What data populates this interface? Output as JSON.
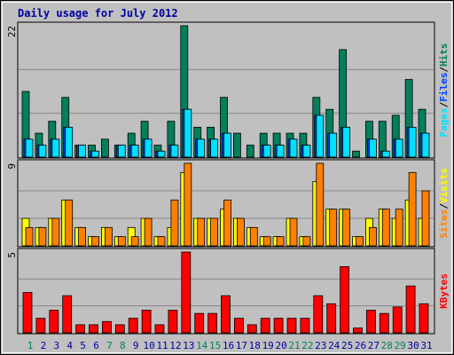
{
  "title": "Daily usage for July 2012",
  "chart_data": [
    {
      "type": "bar",
      "ylim": [
        0,
        22
      ],
      "yticks": [
        22
      ],
      "legend_separator": "/",
      "series": [
        {
          "name": "Hits",
          "color": "#00805c",
          "values": [
            11,
            4,
            6,
            10,
            2,
            2,
            3,
            2,
            4,
            6,
            2,
            6,
            22,
            5,
            5,
            10,
            4,
            2,
            4,
            4,
            4,
            4,
            10,
            8,
            18,
            1,
            6,
            6,
            7,
            13,
            8
          ]
        },
        {
          "name": "Files",
          "color": "#0040ff",
          "values": [
            3,
            2,
            3,
            5,
            2,
            1,
            0,
            2,
            2,
            3,
            1,
            2,
            8,
            3,
            3,
            4,
            0,
            0,
            2,
            2,
            3,
            2,
            7,
            4,
            5,
            0,
            3,
            1,
            3,
            5,
            4
          ]
        },
        {
          "name": "Pages",
          "color": "#00e0ff",
          "values": [
            3,
            2,
            3,
            5,
            2,
            1,
            0,
            2,
            2,
            3,
            1,
            2,
            8,
            3,
            3,
            4,
            0,
            0,
            2,
            2,
            3,
            2,
            7,
            4,
            5,
            0,
            3,
            1,
            3,
            5,
            4
          ]
        }
      ]
    },
    {
      "type": "bar",
      "ylim": [
        0,
        9
      ],
      "yticks": [
        9
      ],
      "legend_separator": "/",
      "series": [
        {
          "name": "Visits",
          "color": "#ffff00",
          "values": [
            3,
            2,
            3,
            5,
            2,
            1,
            2,
            1,
            2,
            3,
            1,
            2,
            8,
            3,
            3,
            4,
            3,
            2,
            1,
            1,
            3,
            1,
            7,
            4,
            4,
            1,
            3,
            4,
            3,
            5,
            3
          ]
        },
        {
          "name": "Sites",
          "color": "#ff8000",
          "values": [
            2,
            2,
            3,
            5,
            2,
            1,
            2,
            1,
            1,
            3,
            1,
            5,
            9,
            3,
            3,
            5,
            3,
            2,
            1,
            1,
            3,
            1,
            9,
            4,
            4,
            1,
            2,
            4,
            4,
            8,
            6
          ]
        }
      ]
    },
    {
      "type": "bar",
      "ylim": [
        0,
        5
      ],
      "yticks": [
        5
      ],
      "categories": [
        "1",
        "2",
        "3",
        "4",
        "5",
        "6",
        "7",
        "8",
        "9",
        "10",
        "11",
        "12",
        "13",
        "14",
        "15",
        "16",
        "17",
        "18",
        "19",
        "20",
        "21",
        "22",
        "23",
        "24",
        "25",
        "26",
        "27",
        "28",
        "29",
        "30",
        "31"
      ],
      "category_colors": [
        "#00805c",
        "#0000a0",
        "#0000a0",
        "#0000a0",
        "#0000a0",
        "#0000a0",
        "#00805c",
        "#00805c",
        "#0000a0",
        "#0000a0",
        "#0000a0",
        "#0000a0",
        "#0000a0",
        "#00805c",
        "#00805c",
        "#0000a0",
        "#0000a0",
        "#0000a0",
        "#0000a0",
        "#0000a0",
        "#00805c",
        "#00805c",
        "#0000a0",
        "#0000a0",
        "#0000a0",
        "#0000a0",
        "#0000a0",
        "#00805c",
        "#00805c",
        "#0000a0",
        "#0000a0"
      ],
      "series": [
        {
          "name": "KBytes",
          "color": "#ff0000",
          "values": [
            2.5,
            0.9,
            1.4,
            2.3,
            0.5,
            0.5,
            0.7,
            0.5,
            0.9,
            1.4,
            0.5,
            1.4,
            5,
            1.2,
            1.2,
            2.3,
            0.9,
            0.5,
            0.9,
            0.9,
            0.9,
            0.9,
            2.3,
            1.8,
            4.1,
            0.3,
            1.4,
            1.2,
            1.6,
            2.9,
            1.8
          ]
        }
      ]
    }
  ]
}
